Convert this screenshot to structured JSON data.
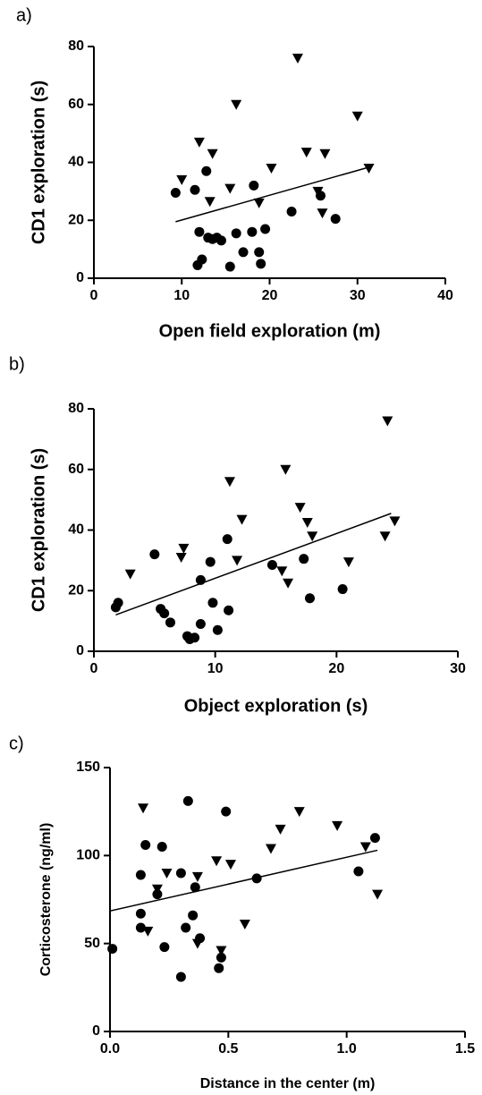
{
  "chart_data": [
    {
      "type": "scatter",
      "panel_label": "a)",
      "x_label": "Open field exploration (m)",
      "y_label": "CD1 exploration (s)",
      "xlim": [
        0,
        40
      ],
      "xticks": [
        0,
        10,
        20,
        30,
        40
      ],
      "ylim": [
        0,
        80
      ],
      "yticks": [
        0,
        20,
        40,
        60,
        80
      ],
      "series": [
        {
          "marker": "circle",
          "color": "#000000",
          "x": [
            9.3,
            11.5,
            12.8,
            12,
            12.3,
            11.8,
            13,
            13.5,
            14,
            14.5,
            15.5,
            16.2,
            17,
            18,
            18.2,
            18.8,
            19,
            19.5,
            22.5,
            25.8,
            27.5
          ],
          "y": [
            29.5,
            30.5,
            37,
            16,
            6.5,
            4.5,
            14,
            13.5,
            14,
            13,
            4,
            15.5,
            9,
            16,
            32,
            9,
            5,
            17,
            23,
            28.5,
            20.5
          ]
        },
        {
          "marker": "triangle-down",
          "color": "#000000",
          "x": [
            10,
            12,
            13.2,
            13.5,
            15.5,
            16.2,
            18.8,
            20.2,
            23.2,
            24.2,
            25.5,
            26,
            26.3,
            30,
            31.3
          ],
          "y": [
            34,
            47,
            26.5,
            43,
            31,
            60,
            26,
            38,
            76,
            43.5,
            30,
            22.5,
            43,
            56,
            38
          ]
        }
      ],
      "fit": {
        "x": [
          9.3,
          31.5
        ],
        "y": [
          19.5,
          38.5
        ]
      }
    },
    {
      "type": "scatter",
      "panel_label": "b)",
      "x_label": "Object exploration (s)",
      "y_label": "CD1 exploration (s)",
      "xlim": [
        0,
        30
      ],
      "xticks": [
        0,
        10,
        20,
        30
      ],
      "ylim": [
        0,
        80
      ],
      "yticks": [
        0,
        20,
        40,
        60,
        80
      ],
      "series": [
        {
          "marker": "circle",
          "color": "#000000",
          "x": [
            1.8,
            2,
            5,
            5.5,
            5.8,
            6.3,
            7.7,
            7.9,
            8.3,
            8.8,
            8.8,
            9.6,
            9.8,
            10.2,
            11,
            11.1,
            14.7,
            17.3,
            17.8,
            20.5
          ],
          "y": [
            14.5,
            16,
            32,
            14,
            12.5,
            9.5,
            5,
            4,
            4.5,
            23.5,
            9,
            29.5,
            16,
            7,
            37,
            13.5,
            28.5,
            30.5,
            17.5,
            20.5
          ]
        },
        {
          "marker": "triangle-down",
          "color": "#000000",
          "x": [
            3,
            7.2,
            7.4,
            11.2,
            11.8,
            12.2,
            15.5,
            15.8,
            16,
            17,
            17.6,
            18,
            21,
            24,
            24.2,
            24.8
          ],
          "y": [
            25.5,
            31,
            34,
            56,
            30,
            43.5,
            26.5,
            60,
            22.5,
            47.5,
            42.5,
            38,
            29.5,
            38,
            76,
            43
          ]
        }
      ],
      "fit": {
        "x": [
          1.8,
          24.5
        ],
        "y": [
          12,
          45.5
        ]
      }
    },
    {
      "type": "scatter",
      "panel_label": "c)",
      "x_label": "Distance in the center (m)",
      "y_label": "Corticosterone (ng/ml)",
      "xlim": [
        0,
        1.5
      ],
      "xticks": [
        {
          "value": 0,
          "label": "0.0"
        },
        0.5,
        {
          "value": 1,
          "label": "1.0"
        },
        1.5
      ],
      "ylim": [
        0,
        150
      ],
      "yticks": [
        0,
        50,
        100,
        150
      ],
      "series": [
        {
          "marker": "circle",
          "color": "#000000",
          "x": [
            0.01,
            0.13,
            0.13,
            0.13,
            0.15,
            0.2,
            0.22,
            0.23,
            0.3,
            0.3,
            0.32,
            0.33,
            0.35,
            0.36,
            0.38,
            0.46,
            0.47,
            0.49,
            0.62,
            1.05,
            1.12
          ],
          "y": [
            47,
            89,
            67,
            59,
            106,
            78,
            105,
            48,
            90,
            31,
            59,
            131,
            66,
            82,
            53,
            36,
            42,
            125,
            87,
            91,
            110
          ]
        },
        {
          "marker": "triangle-down",
          "color": "#000000",
          "x": [
            0.14,
            0.16,
            0.2,
            0.24,
            0.37,
            0.37,
            0.45,
            0.47,
            0.51,
            0.57,
            0.68,
            0.72,
            0.8,
            0.96,
            1.08,
            1.13
          ],
          "y": [
            127,
            57,
            81,
            90,
            88,
            50,
            97,
            46,
            95,
            61,
            104,
            115,
            125,
            117,
            105,
            78
          ]
        }
      ],
      "fit": {
        "x": [
          0,
          1.13
        ],
        "y": [
          68.5,
          103
        ]
      }
    }
  ]
}
